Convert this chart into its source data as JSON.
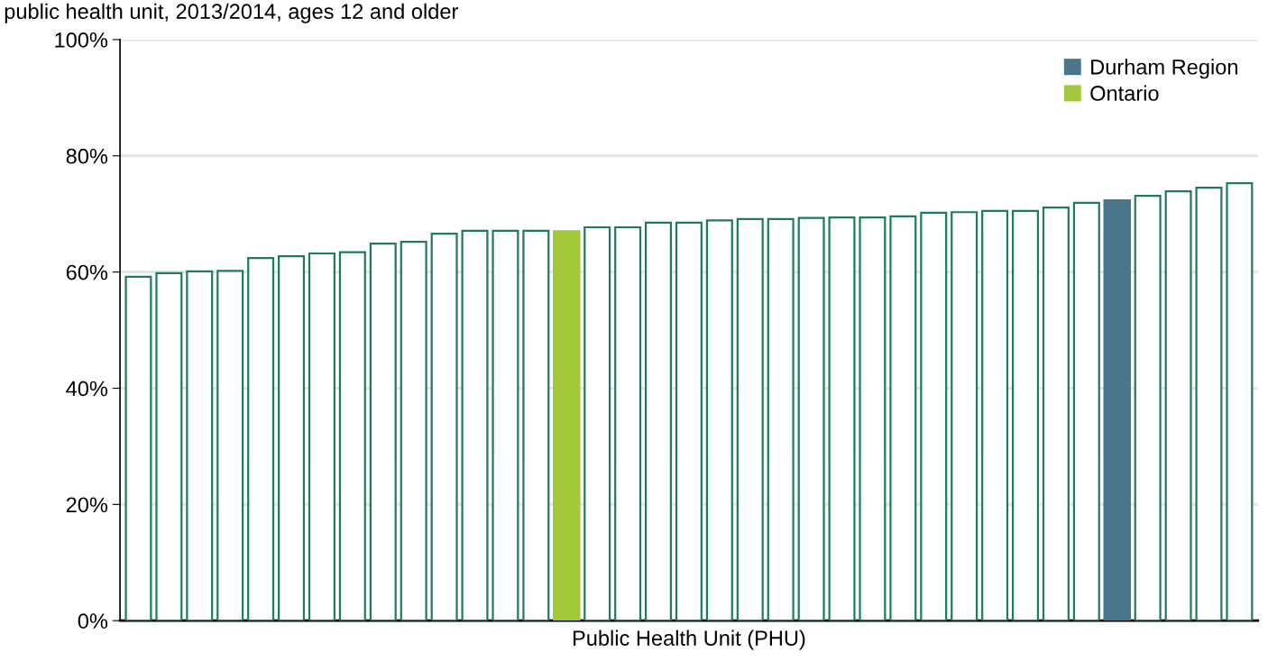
{
  "chart_data": {
    "type": "bar",
    "title": "public health unit, 2013/2014, ages 12 and older",
    "xlabel": "Public Health Unit (PHU)",
    "categories": [
      null,
      null,
      null,
      null,
      null,
      null,
      null,
      null,
      null,
      null,
      null,
      null,
      null,
      null,
      null,
      null,
      null,
      null,
      null,
      null,
      null,
      null,
      null,
      null,
      null,
      null,
      null,
      null,
      null,
      null,
      null,
      null,
      null,
      null,
      null,
      null,
      null
    ],
    "series": [
      {
        "color": "#1e7b5c",
        "values": [
          59.2,
          59.8,
          60.1,
          60.2,
          62.4,
          62.7,
          63.2,
          63.4,
          64.9,
          65.2,
          66.6,
          67.1,
          67.1,
          67.1,
          null,
          67.7,
          67.7,
          68.5,
          68.5,
          68.9,
          69.1,
          69.1,
          69.3,
          69.4,
          69.4,
          69.6,
          70.2,
          70.3,
          70.5,
          70.5,
          71.1,
          71.9,
          null,
          73.1,
          73.9,
          74.5,
          75.3
        ]
      },
      {
        "name": "Durham Region",
        "color": "#4a758a",
        "values": [
          null,
          null,
          null,
          null,
          null,
          null,
          null,
          null,
          null,
          null,
          null,
          null,
          null,
          null,
          null,
          null,
          null,
          null,
          null,
          null,
          null,
          null,
          null,
          null,
          null,
          null,
          null,
          null,
          null,
          null,
          null,
          null,
          72.5,
          null,
          null,
          null,
          null
        ]
      },
      {
        "name": "Ontario",
        "color": "#a3c93a",
        "values": [
          null,
          null,
          null,
          null,
          null,
          null,
          null,
          null,
          null,
          null,
          null,
          null,
          null,
          null,
          67.2,
          null,
          null,
          null,
          null,
          null,
          null,
          null,
          null,
          null,
          null,
          null,
          null,
          null,
          null,
          null,
          null,
          null,
          null,
          null,
          null,
          null,
          null
        ]
      }
    ],
    "ylim": [
      0,
      100
    ],
    "yticks": [
      {
        "value": 0,
        "label": "0%"
      },
      {
        "value": 20,
        "label": "20%"
      },
      {
        "value": 40,
        "label": "40%"
      },
      {
        "value": 60,
        "label": "60%"
      },
      {
        "value": 80,
        "label": "80%"
      },
      {
        "value": 100,
        "label": "100%"
      }
    ],
    "grid": "y",
    "legend": "top right"
  }
}
